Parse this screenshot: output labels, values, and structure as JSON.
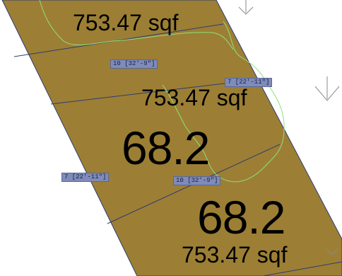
{
  "drawing": {
    "colors": {
      "lot_fill": "#9c7f34",
      "lot_edge": "#2e3c74",
      "contour": "#8fe07e",
      "tag_bg": "#7f8bb8",
      "tag_text": "#1a1f4a",
      "symbol": "#8a8a8a"
    },
    "areas": {
      "lot_1": "753.47 sqf",
      "lot_2": "753.47 sqf",
      "lot_3": "753.47 sqf"
    },
    "lot_numbers": {
      "lot_2": "68.2",
      "lot_3": "68.2"
    },
    "dimensions": {
      "d1": "10 [32'-9\"]",
      "d2": "7 [22'-11\"]",
      "d3": "7 [22'-11\"]",
      "d4": "10 [32'-9\"]"
    },
    "icons": [
      "north-arrow-symbol"
    ]
  }
}
